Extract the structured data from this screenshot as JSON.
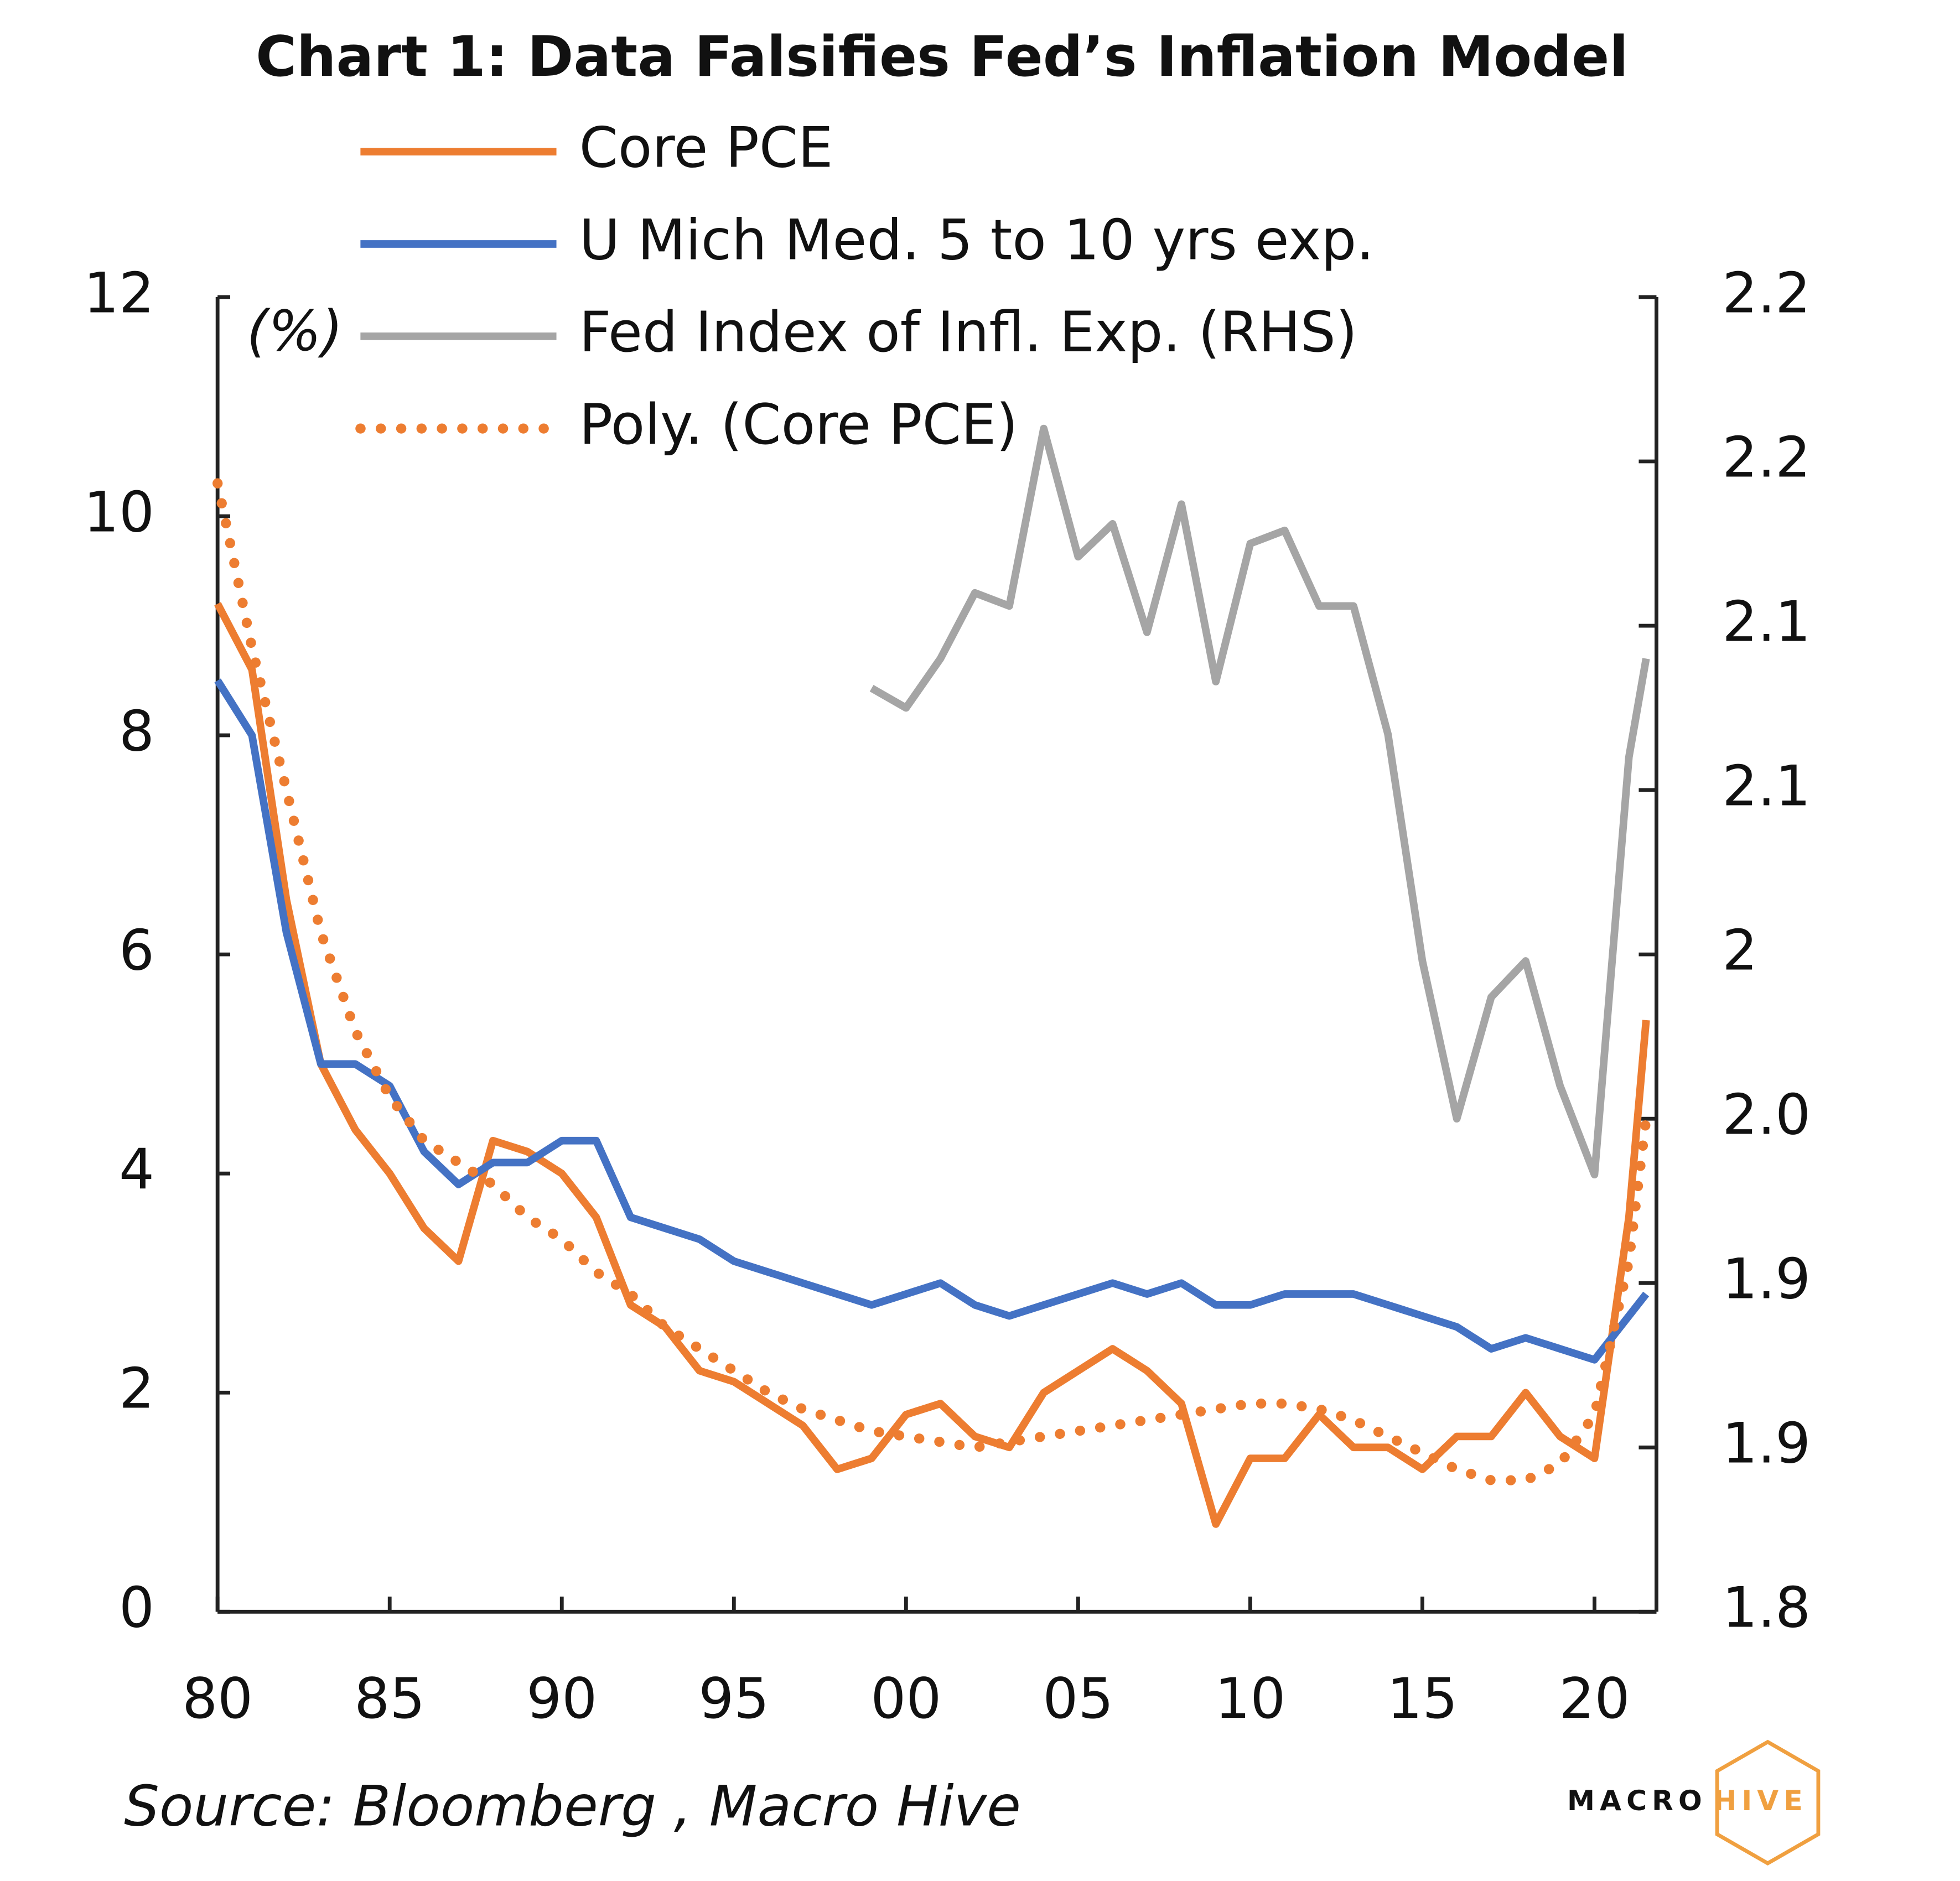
{
  "chart_data": {
    "type": "line",
    "title": "Chart 1: Data Falsifies Fed’s Inflation Model",
    "annotations": [
      "(%)"
    ],
    "source": "Source: Bloomberg , Macro Hive",
    "logo": [
      "MACRO",
      "HIVE"
    ],
    "x": [
      1980,
      1981,
      1982,
      1983,
      1984,
      1985,
      1986,
      1987,
      1988,
      1989,
      1990,
      1991,
      1992,
      1993,
      1994,
      1995,
      1996,
      1997,
      1998,
      1999,
      2000,
      2001,
      2002,
      2003,
      2004,
      2005,
      2006,
      2007,
      2008,
      2009,
      2010,
      2011,
      2012,
      2013,
      2014,
      2015,
      2016,
      2017,
      2018,
      2019,
      2020,
      2021,
      2021.5
    ],
    "xlim": [
      1980,
      2021.8
    ],
    "xticks": [
      {
        "value": 1980,
        "label": "80"
      },
      {
        "value": 1985,
        "label": "85"
      },
      {
        "value": 1990,
        "label": "90"
      },
      {
        "value": 1995,
        "label": "95"
      },
      {
        "value": 2000,
        "label": "00"
      },
      {
        "value": 2005,
        "label": "05"
      },
      {
        "value": 2010,
        "label": "10"
      },
      {
        "value": 2015,
        "label": "15"
      },
      {
        "value": 2020,
        "label": "20"
      }
    ],
    "ylim": [
      0,
      12
    ],
    "yticks": [
      0,
      2,
      4,
      6,
      8,
      10,
      12
    ],
    "y2lim": [
      1.8,
      2.2
    ],
    "y2ticks": [
      1.8,
      {
        "value": 1.85,
        "label": "1.9"
      },
      1.9,
      {
        "value": 1.95,
        "label": "2.0"
      },
      2.0,
      {
        "value": 2.05,
        "label": "2.1"
      },
      2.1,
      {
        "value": 2.15,
        "label": "2.2"
      },
      2.2
    ],
    "grid": false,
    "legend": "top",
    "series": [
      {
        "name": "Core PCE",
        "color": "#ed7d31",
        "style": "solid",
        "values": [
          9.2,
          8.6,
          6.5,
          5.0,
          4.4,
          4.0,
          3.5,
          3.2,
          4.3,
          4.2,
          4.0,
          3.6,
          2.8,
          2.6,
          2.2,
          2.1,
          1.9,
          1.7,
          1.3,
          1.4,
          1.8,
          1.9,
          1.6,
          1.5,
          2.0,
          2.2,
          2.4,
          2.2,
          1.9,
          0.8,
          1.4,
          1.4,
          1.8,
          1.5,
          1.5,
          1.3,
          1.6,
          1.6,
          2.0,
          1.6,
          1.4,
          3.6,
          5.4
        ]
      },
      {
        "name": "U Mich Med. 5 to 10 yrs exp.",
        "color": "#4472c4",
        "style": "solid",
        "values": [
          8.5,
          8.0,
          6.2,
          5.0,
          5.0,
          4.8,
          4.2,
          3.9,
          4.1,
          4.1,
          4.3,
          4.3,
          3.6,
          3.5,
          3.4,
          3.2,
          3.1,
          3.0,
          2.9,
          2.8,
          2.9,
          3.0,
          2.8,
          2.7,
          2.8,
          2.9,
          3.0,
          2.9,
          3.0,
          2.8,
          2.8,
          2.9,
          2.9,
          2.9,
          2.8,
          2.7,
          2.6,
          2.4,
          2.5,
          2.4,
          2.3,
          2.7,
          2.9
        ]
      },
      {
        "name": "Fed Index of Infl. Exp. (RHS)",
        "color": "#a5a5a5",
        "style": "solid",
        "axis": "y2",
        "values": [
          null,
          null,
          null,
          null,
          null,
          null,
          null,
          null,
          null,
          null,
          null,
          null,
          null,
          null,
          null,
          null,
          null,
          null,
          null,
          2.081,
          2.075,
          2.09,
          2.11,
          2.106,
          2.16,
          2.121,
          2.131,
          2.098,
          2.137,
          2.083,
          2.125,
          2.129,
          2.106,
          2.106,
          2.067,
          1.998,
          1.95,
          1.987,
          1.998,
          1.96,
          1.933,
          2.06,
          2.09
        ]
      },
      {
        "name": "Poly. (Core PCE)",
        "color": "#ed7d31",
        "style": "dotted",
        "values": [
          10.3,
          8.8,
          7.5,
          6.2,
          5.3,
          4.7,
          4.3,
          4.1,
          3.9,
          3.6,
          3.4,
          3.1,
          2.9,
          2.6,
          2.4,
          2.2,
          2.0,
          1.85,
          1.75,
          1.65,
          1.6,
          1.55,
          1.5,
          1.55,
          1.6,
          1.65,
          1.7,
          1.75,
          1.8,
          1.85,
          1.9,
          1.9,
          1.85,
          1.75,
          1.6,
          1.45,
          1.3,
          1.2,
          1.2,
          1.35,
          1.8,
          3.2,
          4.5
        ]
      }
    ]
  }
}
